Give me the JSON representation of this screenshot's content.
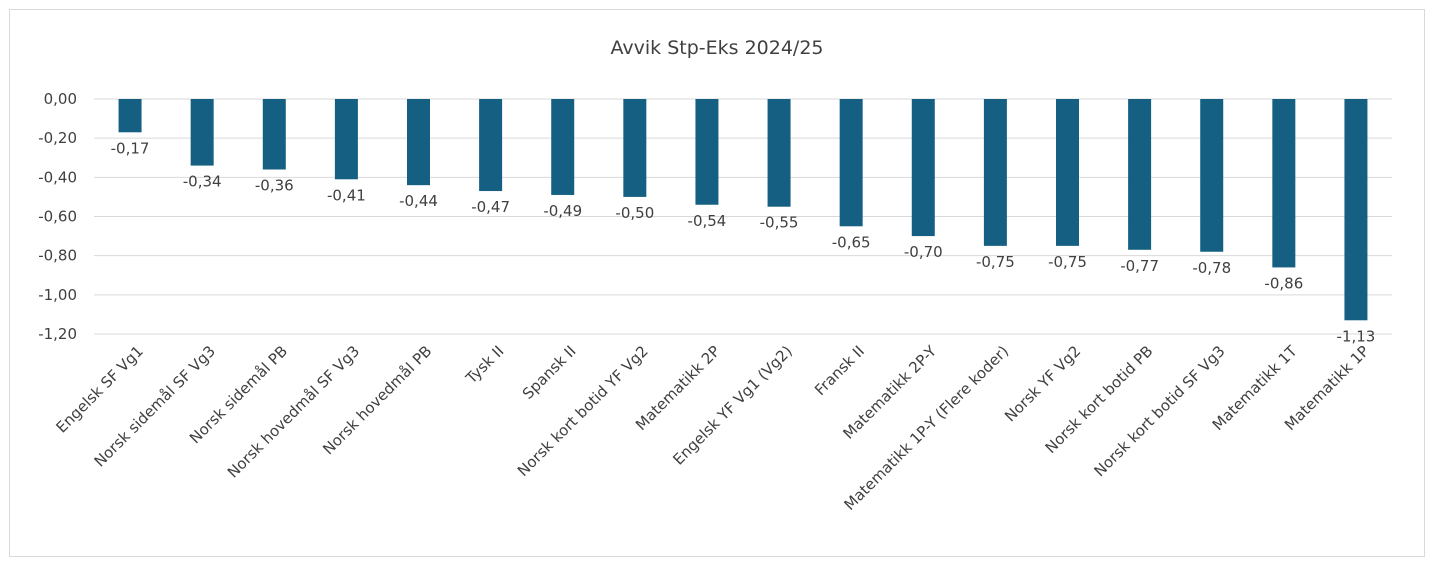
{
  "chart_data": {
    "type": "bar",
    "title": "Avvik Stp-Eks 2024/25",
    "xlabel": "",
    "ylabel": "",
    "ylim": [
      -1.2,
      0
    ],
    "yticks": [
      "0,00",
      "-0,20",
      "-0,40",
      "-0,60",
      "-0,80",
      "-1,00",
      "-1,20"
    ],
    "ytick_values": [
      0,
      -0.2,
      -0.4,
      -0.6,
      -0.8,
      -1.0,
      -1.2
    ],
    "grid": "horizontal",
    "legend": "none",
    "bar_color": "#156082",
    "categories": [
      "Engelsk SF Vg1",
      "Norsk sidemål SF Vg3",
      "Norsk sidemål PB",
      "Norsk hovedmål SF Vg3",
      "Norsk hovedmål PB",
      "Tysk II",
      "Spansk II",
      "Norsk kort botid YF Vg2",
      "Matematikk 2P",
      "Engelsk YF Vg1 (Vg2)",
      "Fransk II",
      "Matematikk 2P-Y",
      "Matematikk 1P-Y (Flere koder)",
      "Norsk YF Vg2",
      "Norsk kort botid PB",
      "Norsk kort botid SF Vg3",
      "Matematikk 1T",
      "Matematikk 1P"
    ],
    "values": [
      -0.17,
      -0.34,
      -0.36,
      -0.41,
      -0.44,
      -0.47,
      -0.49,
      -0.5,
      -0.54,
      -0.55,
      -0.65,
      -0.7,
      -0.75,
      -0.75,
      -0.77,
      -0.78,
      -0.86,
      -1.13
    ],
    "data_labels": [
      "-0,17",
      "-0,34",
      "-0,36",
      "-0,41",
      "-0,44",
      "-0,47",
      "-0,49",
      "-0,50",
      "-0,54",
      "-0,55",
      "-0,65",
      "-0,70",
      "-0,75",
      "-0,75",
      "-0,77",
      "-0,78",
      "-0,86",
      "-1,13"
    ]
  }
}
